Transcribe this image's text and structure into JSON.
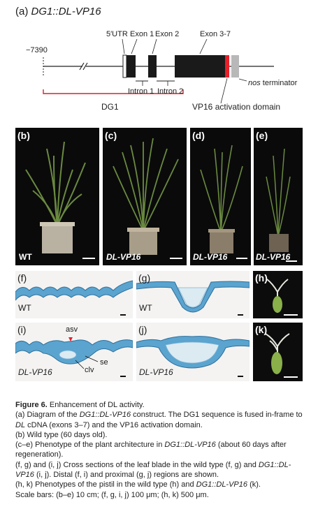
{
  "diagram": {
    "panel_label": "(a)",
    "construct_name": "DG1::DL-VP16",
    "coord": "−7390",
    "utr": "5′UTR",
    "exon1": "Exon 1",
    "exon2": "Exon 2",
    "exon37": "Exon 3-7",
    "intron1": "Intron 1",
    "intron2": "Intron 2",
    "nos": "nos terminator",
    "nos_italic": "nos",
    "nos_rest": " terminator",
    "dg1": "DG1",
    "vp16": "VP16 activation domain"
  },
  "plants": {
    "b": {
      "label": "(b)",
      "genotype": "WT"
    },
    "c": {
      "label": "(c)",
      "genotype": "DL-VP16"
    },
    "d": {
      "label": "(d)",
      "genotype": "DL-VP16"
    },
    "e": {
      "label": "(e)",
      "genotype": "DL-VP16"
    }
  },
  "sections": {
    "f": {
      "label": "(f)",
      "genotype": "WT"
    },
    "g": {
      "label": "(g)",
      "genotype": "WT"
    },
    "h": {
      "label": "(h)"
    },
    "i": {
      "label": "(i)",
      "genotype": "DL-VP16",
      "asv": "asv",
      "se": "se",
      "clv": "clv"
    },
    "j": {
      "label": "(j)",
      "genotype": "DL-VP16"
    },
    "k": {
      "label": "(k)"
    }
  },
  "caption": {
    "title": "Figure 6.",
    "title_rest": " Enhancement of DL activity.",
    "line_a1": "(a) Diagram of the ",
    "line_a_construct": "DG1::DL-VP16",
    "line_a2": " construct. The DG1 sequence is fused in-frame to ",
    "line_a_dl": "DL",
    "line_a3": " cDNA (exons 3–7) and the VP16 activation domain.",
    "line_b": "(b) Wild type (60 days old).",
    "line_ce1": "(c–e) Phenotype of the plant architecture in ",
    "line_ce_construct": "DG1::DL-VP16",
    "line_ce2": " (about 60 days after regeneration).",
    "line_fg1": "(f, g) and (i, j) Cross sections of the leaf blade in the wild type (f, g) and ",
    "line_fg_construct": "DG1::DL-VP16",
    "line_fg2": " (i, j). Distal (f, i) and proximal (g, j) regions are shown.",
    "line_hk1": "(h, k) Phenotypes of the pistil in the wild type (h) and ",
    "line_hk_construct": "DG1::DL-VP16",
    "line_hk2": " (k).",
    "line_scale": "Scale bars: (b–e) 10 cm; (f, g, i, j) 100 μm; (h, k) 500 μm."
  },
  "colors": {
    "red_bracket": "#d8202a",
    "vp16": "#e8202a",
    "exon": "#1a1a1a",
    "section_blue": "#4a9ac8",
    "photo_bg": "#0a0a0a"
  }
}
